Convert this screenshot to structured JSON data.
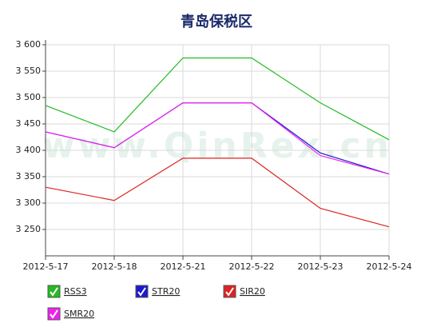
{
  "chart_data": {
    "type": "line",
    "title": "青岛保税区",
    "watermark": "www.QinRex.cn",
    "categories": [
      "2012-5-17",
      "2012-5-18",
      "2012-5-21",
      "2012-5-22",
      "2012-5-23",
      "2012-5-24"
    ],
    "series": [
      {
        "name": "RSS3",
        "color": "#22bb22",
        "values": [
          3485,
          3435,
          3575,
          3575,
          3490,
          3420
        ]
      },
      {
        "name": "STR20",
        "color": "#1a1acc",
        "values": [
          3435,
          3405,
          3490,
          3490,
          3395,
          3355
        ]
      },
      {
        "name": "SIR20",
        "color": "#dd2222",
        "values": [
          3330,
          3305,
          3385,
          3385,
          3290,
          3255
        ]
      },
      {
        "name": "SMR20",
        "color": "#ee22ee",
        "values": [
          3435,
          3405,
          3490,
          3490,
          3390,
          3355
        ]
      }
    ],
    "ylim": [
      3200,
      3600
    ],
    "yticks": [
      {
        "value": 3250,
        "label": "3 250"
      },
      {
        "value": 3300,
        "label": "3 300"
      },
      {
        "value": 3350,
        "label": "3 350"
      },
      {
        "value": 3400,
        "label": "3 400"
      },
      {
        "value": 3450,
        "label": "3 450"
      },
      {
        "value": 3500,
        "label": "3 500"
      },
      {
        "value": 3550,
        "label": "3 550"
      },
      {
        "value": 3600,
        "label": "3 600"
      }
    ],
    "grid": true
  }
}
